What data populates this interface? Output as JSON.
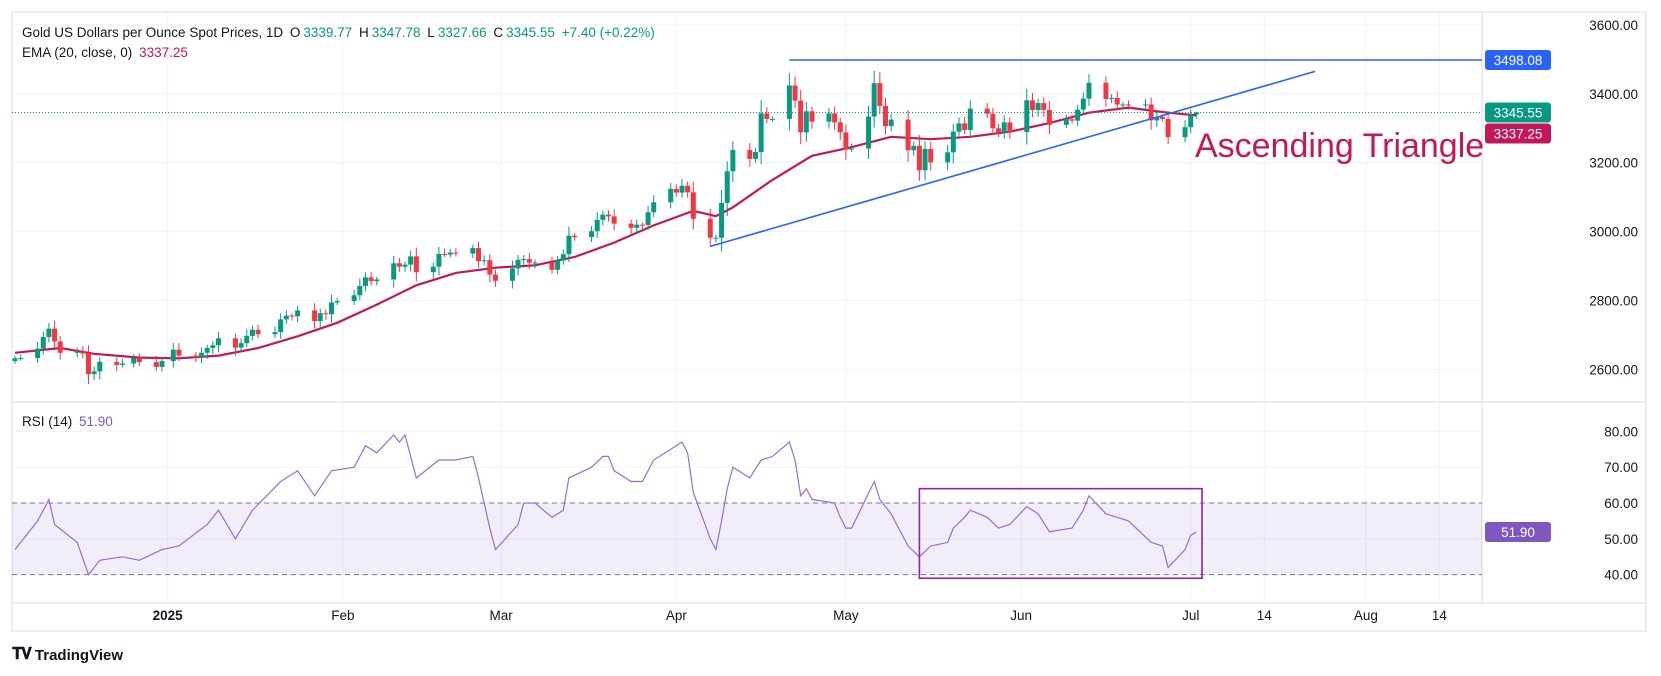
{
  "legend": {
    "title": "Gold US Dollars per Ounce Spot Prices, 1D",
    "o_label": "O",
    "o_value": "3339.77",
    "h_label": "H",
    "h_value": "3347.78",
    "l_label": "L",
    "l_value": "3327.66",
    "c_label": "C",
    "c_value": "3345.55",
    "change": "+7.40 (+0.22%)",
    "ema_label": "EMA (20, close, 0)",
    "ema_value": "3337.25",
    "rsi_label": "RSI (14)",
    "rsi_value": "51.90"
  },
  "branding": {
    "logo_text": "TradingView"
  },
  "colors": {
    "up": "#089981",
    "down": "#f23645",
    "ema": "#c2185b",
    "trendline": "#2962ff",
    "rsi": "#9c6ad6",
    "box": "#8e24aa"
  },
  "chart_data": [
    {
      "type": "candlestick",
      "title": "Gold US Dollars per Ounce Spot Prices, 1D",
      "ylim": [
        2540,
        3620
      ],
      "y_ticks": [
        "3600.00",
        "3400.00",
        "3200.00",
        "3000.00",
        "2800.00",
        "2600.00"
      ],
      "y_tick_values": [
        3600,
        3400,
        3200,
        3000,
        2800,
        2600
      ],
      "x_tick_labels": [
        "2025",
        "Feb",
        "Mar",
        "Apr",
        "May",
        "Jun",
        "Jul",
        "14",
        "Aug",
        "14"
      ],
      "x_tick_dates": [
        "2025-01-01",
        "2025-02-01",
        "2025-03-01",
        "2025-04-01",
        "2025-05-01",
        "2025-06-01",
        "2025-07-01",
        "2025-07-14",
        "2025-08-01",
        "2025-08-14"
      ],
      "x_range": [
        "2024-12-05",
        "2025-08-21"
      ],
      "price_labels": [
        {
          "text": "3498.08",
          "value": 3498.08,
          "color": "#2962ff"
        },
        {
          "text": "3345.55",
          "value": 3345.55,
          "color": "#089981"
        },
        {
          "text": "3337.25",
          "value": 3337.25,
          "color": "#c2185b"
        }
      ],
      "last_price": 3345.55,
      "annotation": "Ascending Triangle",
      "resistance": {
        "value": 3498.08,
        "from": "2025-04-21",
        "to": "2025-08-21"
      },
      "support_line": {
        "from_date": "2025-04-07",
        "from_value": 2957,
        "to_date": "2025-07-23",
        "to_value": 3465
      },
      "closes": [
        [
          "2024-12-05",
          2632
        ],
        [
          "2024-12-06",
          2633
        ],
        [
          "2024-12-09",
          2660
        ],
        [
          "2024-12-10",
          2694
        ],
        [
          "2024-12-11",
          2718
        ],
        [
          "2024-12-12",
          2681
        ],
        [
          "2024-12-13",
          2648
        ],
        [
          "2024-12-16",
          2651
        ],
        [
          "2024-12-17",
          2646
        ],
        [
          "2024-12-18",
          2586
        ],
        [
          "2024-12-19",
          2594
        ],
        [
          "2024-12-20",
          2622
        ],
        [
          "2024-12-23",
          2613
        ],
        [
          "2024-12-24",
          2617
        ],
        [
          "2024-12-26",
          2633
        ],
        [
          "2024-12-27",
          2621
        ],
        [
          "2024-12-30",
          2607
        ],
        [
          "2024-12-31",
          2624
        ],
        [
          "2025-01-02",
          2657
        ],
        [
          "2025-01-03",
          2640
        ],
        [
          "2025-01-06",
          2635
        ],
        [
          "2025-01-07",
          2648
        ],
        [
          "2025-01-08",
          2662
        ],
        [
          "2025-01-09",
          2670
        ],
        [
          "2025-01-10",
          2690
        ],
        [
          "2025-01-13",
          2663
        ],
        [
          "2025-01-14",
          2676
        ],
        [
          "2025-01-15",
          2697
        ],
        [
          "2025-01-16",
          2715
        ],
        [
          "2025-01-17",
          2702
        ],
        [
          "2025-01-20",
          2708
        ],
        [
          "2025-01-21",
          2745
        ],
        [
          "2025-01-22",
          2756
        ],
        [
          "2025-01-23",
          2754
        ],
        [
          "2025-01-24",
          2771
        ],
        [
          "2025-01-27",
          2740
        ],
        [
          "2025-01-28",
          2763
        ],
        [
          "2025-01-29",
          2760
        ],
        [
          "2025-01-30",
          2794
        ],
        [
          "2025-01-31",
          2798
        ],
        [
          "2025-02-03",
          2815
        ],
        [
          "2025-02-04",
          2842
        ],
        [
          "2025-02-05",
          2867
        ],
        [
          "2025-02-06",
          2856
        ],
        [
          "2025-02-07",
          2861
        ],
        [
          "2025-02-10",
          2908
        ],
        [
          "2025-02-11",
          2898
        ],
        [
          "2025-02-12",
          2904
        ],
        [
          "2025-02-13",
          2928
        ],
        [
          "2025-02-14",
          2882
        ],
        [
          "2025-02-17",
          2898
        ],
        [
          "2025-02-18",
          2935
        ],
        [
          "2025-02-19",
          2933
        ],
        [
          "2025-02-20",
          2939
        ],
        [
          "2025-02-21",
          2936
        ],
        [
          "2025-02-24",
          2952
        ],
        [
          "2025-02-25",
          2914
        ],
        [
          "2025-02-26",
          2917
        ],
        [
          "2025-02-27",
          2875
        ],
        [
          "2025-02-28",
          2857
        ],
        [
          "2025-03-03",
          2893
        ],
        [
          "2025-03-04",
          2918
        ],
        [
          "2025-03-05",
          2920
        ],
        [
          "2025-03-06",
          2910
        ],
        [
          "2025-03-07",
          2910
        ],
        [
          "2025-03-10",
          2889
        ],
        [
          "2025-03-11",
          2916
        ],
        [
          "2025-03-12",
          2934
        ],
        [
          "2025-03-13",
          2988
        ],
        [
          "2025-03-14",
          2984
        ],
        [
          "2025-03-17",
          3001
        ],
        [
          "2025-03-18",
          3034
        ],
        [
          "2025-03-19",
          3049
        ],
        [
          "2025-03-20",
          3044
        ],
        [
          "2025-03-21",
          3023
        ],
        [
          "2025-03-24",
          3011
        ],
        [
          "2025-03-25",
          3020
        ],
        [
          "2025-03-26",
          3019
        ],
        [
          "2025-03-27",
          3056
        ],
        [
          "2025-03-28",
          3085
        ],
        [
          "2025-03-31",
          3124
        ],
        [
          "2025-04-01",
          3113
        ],
        [
          "2025-04-02",
          3133
        ],
        [
          "2025-04-03",
          3114
        ],
        [
          "2025-04-04",
          3037
        ],
        [
          "2025-04-07",
          2982
        ],
        [
          "2025-04-08",
          2982
        ],
        [
          "2025-04-09",
          3083
        ],
        [
          "2025-04-10",
          3175
        ],
        [
          "2025-04-11",
          3237
        ],
        [
          "2025-04-14",
          3211
        ],
        [
          "2025-04-15",
          3231
        ],
        [
          "2025-04-16",
          3343
        ],
        [
          "2025-04-17",
          3327
        ],
        [
          "2025-04-18",
          3327
        ],
        [
          "2025-04-21",
          3424
        ],
        [
          "2025-04-22",
          3380
        ],
        [
          "2025-04-23",
          3288
        ],
        [
          "2025-04-24",
          3349
        ],
        [
          "2025-04-25",
          3319
        ],
        [
          "2025-04-28",
          3343
        ],
        [
          "2025-04-29",
          3317
        ],
        [
          "2025-04-30",
          3288
        ],
        [
          "2025-05-01",
          3238
        ],
        [
          "2025-05-02",
          3241
        ],
        [
          "2025-05-05",
          3334
        ],
        [
          "2025-05-06",
          3431
        ],
        [
          "2025-05-07",
          3365
        ],
        [
          "2025-05-08",
          3306
        ],
        [
          "2025-05-09",
          3325
        ],
        [
          "2025-05-12",
          3236
        ],
        [
          "2025-05-13",
          3249
        ],
        [
          "2025-05-14",
          3178
        ],
        [
          "2025-05-15",
          3240
        ],
        [
          "2025-05-16",
          3201
        ],
        [
          "2025-05-19",
          3230
        ],
        [
          "2025-05-20",
          3290
        ],
        [
          "2025-05-21",
          3314
        ],
        [
          "2025-05-22",
          3295
        ],
        [
          "2025-05-23",
          3357
        ],
        [
          "2025-05-26",
          3342
        ],
        [
          "2025-05-27",
          3300
        ],
        [
          "2025-05-28",
          3288
        ],
        [
          "2025-05-29",
          3317
        ],
        [
          "2025-05-30",
          3289
        ],
        [
          "2025-06-02",
          3381
        ],
        [
          "2025-06-03",
          3353
        ],
        [
          "2025-06-04",
          3373
        ],
        [
          "2025-06-05",
          3353
        ],
        [
          "2025-06-06",
          3310
        ],
        [
          "2025-06-09",
          3326
        ],
        [
          "2025-06-10",
          3322
        ],
        [
          "2025-06-11",
          3354
        ],
        [
          "2025-06-12",
          3386
        ],
        [
          "2025-06-13",
          3432
        ],
        [
          "2025-06-16",
          3385
        ],
        [
          "2025-06-17",
          3388
        ],
        [
          "2025-06-18",
          3369
        ],
        [
          "2025-06-19",
          3369
        ],
        [
          "2025-06-20",
          3368
        ],
        [
          "2025-06-23",
          3369
        ],
        [
          "2025-06-24",
          3323
        ],
        [
          "2025-06-25",
          3333
        ],
        [
          "2025-06-26",
          3327
        ],
        [
          "2025-06-27",
          3274
        ],
        [
          "2025-06-30",
          3303
        ],
        [
          "2025-07-01",
          3338
        ],
        [
          "2025-07-02",
          3345.55
        ]
      ],
      "ema_20": [
        [
          "2024-12-05",
          2648
        ],
        [
          "2024-12-13",
          2662
        ],
        [
          "2024-12-19",
          2645
        ],
        [
          "2024-12-27",
          2634
        ],
        [
          "2025-01-03",
          2632
        ],
        [
          "2025-01-10",
          2640
        ],
        [
          "2025-01-17",
          2662
        ],
        [
          "2025-01-24",
          2696
        ],
        [
          "2025-01-31",
          2735
        ],
        [
          "2025-02-07",
          2788
        ],
        [
          "2025-02-14",
          2844
        ],
        [
          "2025-02-21",
          2880
        ],
        [
          "2025-02-28",
          2895
        ],
        [
          "2025-03-07",
          2902
        ],
        [
          "2025-03-14",
          2926
        ],
        [
          "2025-03-21",
          2968
        ],
        [
          "2025-03-28",
          3018
        ],
        [
          "2025-04-04",
          3060
        ],
        [
          "2025-04-08",
          3045
        ],
        [
          "2025-04-11",
          3070
        ],
        [
          "2025-04-18",
          3150
        ],
        [
          "2025-04-25",
          3220
        ],
        [
          "2025-05-02",
          3245
        ],
        [
          "2025-05-09",
          3275
        ],
        [
          "2025-05-16",
          3268
        ],
        [
          "2025-05-23",
          3275
        ],
        [
          "2025-05-30",
          3290
        ],
        [
          "2025-06-06",
          3315
        ],
        [
          "2025-06-13",
          3345
        ],
        [
          "2025-06-20",
          3360
        ],
        [
          "2025-06-27",
          3345
        ],
        [
          "2025-07-02",
          3337.25
        ]
      ]
    },
    {
      "type": "line",
      "title": "RSI (14)",
      "ylim": [
        36,
        84
      ],
      "y_ticks": [
        "80.00",
        "70.00",
        "60.00",
        "50.00",
        "40.00"
      ],
      "y_tick_values": [
        80,
        70,
        60,
        50,
        40
      ],
      "band": [
        40,
        60
      ],
      "last_value": 51.9,
      "highlight_box": {
        "from": "2025-05-14",
        "to": "2025-07-03",
        "low": 39,
        "high": 64
      },
      "rsi": [
        [
          "2024-12-05",
          47
        ],
        [
          "2024-12-09",
          55
        ],
        [
          "2024-12-11",
          61
        ],
        [
          "2024-12-12",
          54
        ],
        [
          "2024-12-16",
          49
        ],
        [
          "2024-12-18",
          40
        ],
        [
          "2024-12-20",
          44
        ],
        [
          "2024-12-24",
          45
        ],
        [
          "2024-12-27",
          44
        ],
        [
          "2024-12-31",
          47
        ],
        [
          "2025-01-03",
          48
        ],
        [
          "2025-01-08",
          54
        ],
        [
          "2025-01-10",
          58
        ],
        [
          "2025-01-13",
          50
        ],
        [
          "2025-01-16",
          58
        ],
        [
          "2025-01-21",
          66
        ],
        [
          "2025-01-24",
          69
        ],
        [
          "2025-01-27",
          62
        ],
        [
          "2025-01-30",
          69
        ],
        [
          "2025-02-03",
          70
        ],
        [
          "2025-02-05",
          76
        ],
        [
          "2025-02-07",
          74
        ],
        [
          "2025-02-10",
          79
        ],
        [
          "2025-02-11",
          77
        ],
        [
          "2025-02-12",
          79
        ],
        [
          "2025-02-14",
          67
        ],
        [
          "2025-02-18",
          72
        ],
        [
          "2025-02-21",
          72
        ],
        [
          "2025-02-24",
          73
        ],
        [
          "2025-02-25",
          67
        ],
        [
          "2025-02-27",
          53
        ],
        [
          "2025-02-28",
          47
        ],
        [
          "2025-03-04",
          54
        ],
        [
          "2025-03-05",
          60
        ],
        [
          "2025-03-07",
          60
        ],
        [
          "2025-03-10",
          56
        ],
        [
          "2025-03-12",
          58
        ],
        [
          "2025-03-13",
          67
        ],
        [
          "2025-03-17",
          70
        ],
        [
          "2025-03-19",
          73
        ],
        [
          "2025-03-20",
          73
        ],
        [
          "2025-03-21",
          69
        ],
        [
          "2025-03-24",
          66
        ],
        [
          "2025-03-26",
          66
        ],
        [
          "2025-03-28",
          72
        ],
        [
          "2025-04-01",
          76
        ],
        [
          "2025-04-02",
          77
        ],
        [
          "2025-04-03",
          74
        ],
        [
          "2025-04-04",
          63
        ],
        [
          "2025-04-07",
          50
        ],
        [
          "2025-04-08",
          47
        ],
        [
          "2025-04-09",
          55
        ],
        [
          "2025-04-10",
          64
        ],
        [
          "2025-04-11",
          70
        ],
        [
          "2025-04-14",
          67
        ],
        [
          "2025-04-16",
          72
        ],
        [
          "2025-04-18",
          73
        ],
        [
          "2025-04-21",
          77
        ],
        [
          "2025-04-22",
          72
        ],
        [
          "2025-04-23",
          62
        ],
        [
          "2025-04-24",
          64
        ],
        [
          "2025-04-25",
          61
        ],
        [
          "2025-04-29",
          60
        ],
        [
          "2025-04-30",
          56
        ],
        [
          "2025-05-01",
          53
        ],
        [
          "2025-05-02",
          53
        ],
        [
          "2025-05-06",
          66
        ],
        [
          "2025-05-07",
          61
        ],
        [
          "2025-05-09",
          57
        ],
        [
          "2025-05-12",
          48
        ],
        [
          "2025-05-14",
          45
        ],
        [
          "2025-05-16",
          48
        ],
        [
          "2025-05-19",
          49
        ],
        [
          "2025-05-20",
          53
        ],
        [
          "2025-05-22",
          56
        ],
        [
          "2025-05-23",
          58
        ],
        [
          "2025-05-26",
          56
        ],
        [
          "2025-05-28",
          53
        ],
        [
          "2025-05-30",
          54
        ],
        [
          "2025-06-02",
          59
        ],
        [
          "2025-06-04",
          57
        ],
        [
          "2025-06-06",
          52
        ],
        [
          "2025-06-10",
          53
        ],
        [
          "2025-06-12",
          58
        ],
        [
          "2025-06-13",
          62
        ],
        [
          "2025-06-16",
          57
        ],
        [
          "2025-06-18",
          56
        ],
        [
          "2025-06-20",
          55
        ],
        [
          "2025-06-24",
          49
        ],
        [
          "2025-06-26",
          48
        ],
        [
          "2025-06-27",
          42
        ],
        [
          "2025-06-30",
          47
        ],
        [
          "2025-07-01",
          51
        ],
        [
          "2025-07-02",
          51.9
        ]
      ]
    }
  ]
}
